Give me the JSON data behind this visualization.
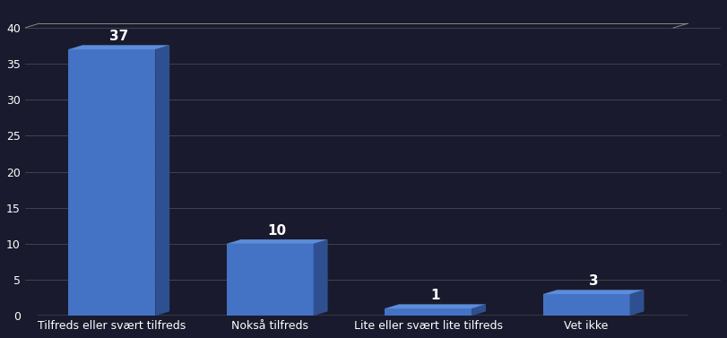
{
  "categories": [
    "Tilfreds eller svært tilfreds",
    "Nokså tilfreds",
    "Lite eller svært lite tilfreds",
    "Vet ikke"
  ],
  "values": [
    37,
    10,
    1,
    3
  ],
  "bar_color_front": "#4472C4",
  "bar_color_top": "#5B8DD9",
  "bar_color_side": "#2E5090",
  "background_color": "#1a1a2e",
  "grid_color": "#888888",
  "ylim": [
    0,
    40
  ],
  "yticks": [
    0,
    5,
    10,
    15,
    20,
    25,
    30,
    35,
    40
  ],
  "bar_width": 0.55,
  "depth": 0.18,
  "perspective": 0.12
}
